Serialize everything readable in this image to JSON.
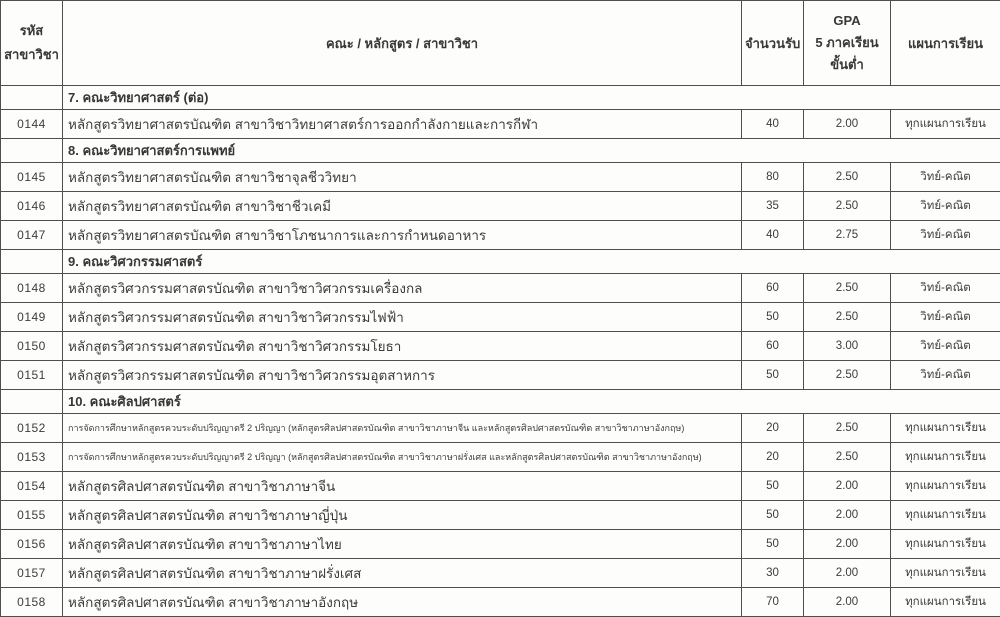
{
  "document": {
    "type": "scanned-admissions-table"
  },
  "colors": {
    "background": "#fdfdfc",
    "text": "#3c3c3c",
    "border": "#4f4f4f"
  },
  "table": {
    "header": {
      "code_line1": "รหัส",
      "code_line2": "สาขาวิชา",
      "program": "คณะ / หลักสูตร / สาขาวิชา",
      "quota": "จำนวนรับ",
      "gpa_line1": "GPA",
      "gpa_line2": "5 ภาคเรียน",
      "gpa_line3": "ขั้นต่ำ",
      "plan": "แผนการเรียน"
    },
    "rows": [
      {
        "type": "section",
        "title": "7. คณะวิทยาศาสตร์ (ต่อ)"
      },
      {
        "type": "data",
        "code": "0144",
        "program": "หลักสูตรวิทยาศาสตรบัณฑิต สาขาวิชาวิทยาศาสตร์การออกกำลังกายและการกีฬา",
        "quota": "40",
        "gpa": "2.00",
        "plan": "ทุกแผนการเรียน",
        "small": false
      },
      {
        "type": "section",
        "title": "8. คณะวิทยาศาสตร์การแพทย์"
      },
      {
        "type": "data",
        "code": "0145",
        "program": "หลักสูตรวิทยาศาสตรบัณฑิต สาขาวิชาจุลชีววิทยา",
        "quota": "80",
        "gpa": "2.50",
        "plan": "วิทย์-คณิต",
        "small": false
      },
      {
        "type": "data",
        "code": "0146",
        "program": "หลักสูตรวิทยาศาสตรบัณฑิต สาขาวิชาชีวเคมี",
        "quota": "35",
        "gpa": "2.50",
        "plan": "วิทย์-คณิต",
        "small": false
      },
      {
        "type": "data",
        "code": "0147",
        "program": "หลักสูตรวิทยาศาสตรบัณฑิต สาขาวิชาโภชนาการและการกำหนดอาหาร",
        "quota": "40",
        "gpa": "2.75",
        "plan": "วิทย์-คณิต",
        "small": false
      },
      {
        "type": "section",
        "title": "9. คณะวิศวกรรมศาสตร์"
      },
      {
        "type": "data",
        "code": "0148",
        "program": "หลักสูตรวิศวกรรมศาสตรบัณฑิต สาขาวิชาวิศวกรรมเครื่องกล",
        "quota": "60",
        "gpa": "2.50",
        "plan": "วิทย์-คณิต",
        "small": false
      },
      {
        "type": "data",
        "code": "0149",
        "program": "หลักสูตรวิศวกรรมศาสตรบัณฑิต สาขาวิชาวิศวกรรมไฟฟ้า",
        "quota": "50",
        "gpa": "2.50",
        "plan": "วิทย์-คณิต",
        "small": false
      },
      {
        "type": "data",
        "code": "0150",
        "program": "หลักสูตรวิศวกรรมศาสตรบัณฑิต สาขาวิชาวิศวกรรมโยธา",
        "quota": "60",
        "gpa": "3.00",
        "plan": "วิทย์-คณิต",
        "small": false
      },
      {
        "type": "data",
        "code": "0151",
        "program": "หลักสูตรวิศวกรรมศาสตรบัณฑิต สาขาวิชาวิศวกรรมอุตสาหการ",
        "quota": "50",
        "gpa": "2.50",
        "plan": "วิทย์-คณิต",
        "small": false
      },
      {
        "type": "section",
        "title": "10. คณะศิลปศาสตร์"
      },
      {
        "type": "data",
        "code": "0152",
        "program": "การจัดการศึกษาหลักสูตรควบระดับปริญญาตรี 2 ปริญญา (หลักสูตรศิลปศาสตรบัณฑิต สาขาวิชาภาษาจีน และหลักสูตรศิลปศาสตรบัณฑิต สาขาวิชาภาษาอังกฤษ)",
        "quota": "20",
        "gpa": "2.50",
        "plan": "ทุกแผนการเรียน",
        "small": true
      },
      {
        "type": "data",
        "code": "0153",
        "program": "การจัดการศึกษาหลักสูตรควบระดับปริญญาตรี 2 ปริญญา (หลักสูตรศิลปศาสตรบัณฑิต สาขาวิชาภาษาฝรั่งเศส และหลักสูตรศิลปศาสตรบัณฑิต สาขาวิชาภาษาอังกฤษ)",
        "quota": "20",
        "gpa": "2.50",
        "plan": "ทุกแผนการเรียน",
        "small": true
      },
      {
        "type": "data",
        "code": "0154",
        "program": "หลักสูตรศิลปศาสตรบัณฑิต สาขาวิชาภาษาจีน",
        "quota": "50",
        "gpa": "2.00",
        "plan": "ทุกแผนการเรียน",
        "small": false
      },
      {
        "type": "data",
        "code": "0155",
        "program": "หลักสูตรศิลปศาสตรบัณฑิต สาขาวิชาภาษาญี่ปุ่น",
        "quota": "50",
        "gpa": "2.00",
        "plan": "ทุกแผนการเรียน",
        "small": false
      },
      {
        "type": "data",
        "code": "0156",
        "program": "หลักสูตรศิลปศาสตรบัณฑิต สาขาวิชาภาษาไทย",
        "quota": "50",
        "gpa": "2.00",
        "plan": "ทุกแผนการเรียน",
        "small": false
      },
      {
        "type": "data",
        "code": "0157",
        "program": "หลักสูตรศิลปศาสตรบัณฑิต สาขาวิชาภาษาฝรั่งเศส",
        "quota": "30",
        "gpa": "2.00",
        "plan": "ทุกแผนการเรียน",
        "small": false
      },
      {
        "type": "data",
        "code": "0158",
        "program": "หลักสูตรศิลปศาสตรบัณฑิต สาขาวิชาภาษาอังกฤษ",
        "quota": "70",
        "gpa": "2.00",
        "plan": "ทุกแผนการเรียน",
        "small": false
      }
    ]
  }
}
